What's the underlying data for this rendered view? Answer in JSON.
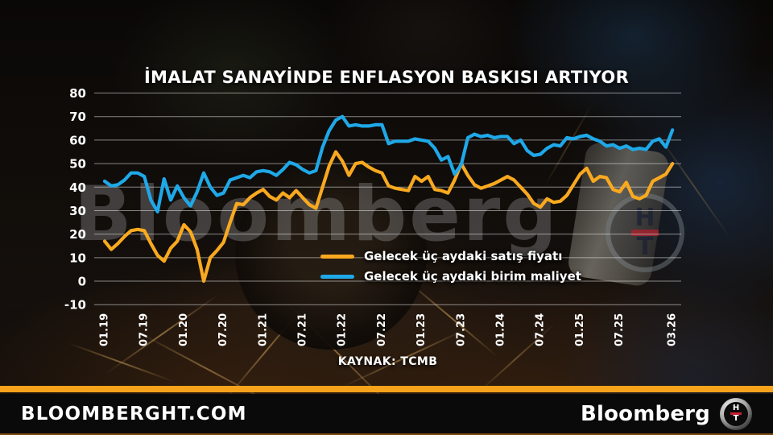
{
  "title": "İMALAT SANAYİNDE ENFLASYON BASKISI ARTIYOR",
  "source": "KAYNAK: TCMB",
  "watermark": {
    "text": "Bloomberg"
  },
  "ht_logo": {
    "top": "H",
    "bottom": "T"
  },
  "footer": {
    "site": "BLOOMBERGHT.COM",
    "brand": "Bloomberg"
  },
  "colors": {
    "selling_price_line": "#f9a91f",
    "unit_cost_line": "#1fa8e8",
    "grid": "rgba(235,235,235,0.55)",
    "tick_text": "#ffffff",
    "footer_stripe": "#f7a21b"
  },
  "chart_data": {
    "type": "line",
    "title": "İMALAT SANAYİNDE ENFLASYON BASKISI ARTIYOR",
    "x_start": "01.19",
    "x_end": "03.26",
    "x_points": 87,
    "x_tick_labels": [
      "01.19",
      "07.19",
      "01.20",
      "07.20",
      "01.21",
      "07.21",
      "01.22",
      "07.22",
      "01.23",
      "07.23",
      "01.24",
      "07.24",
      "01.25",
      "07.25",
      "03.26"
    ],
    "x_tick_month_index": [
      0,
      6,
      12,
      18,
      24,
      30,
      36,
      42,
      48,
      54,
      60,
      66,
      72,
      78,
      86
    ],
    "y_ticks": [
      80,
      70,
      60,
      50,
      40,
      30,
      20,
      10,
      0,
      -10
    ],
    "ylim": [
      -10,
      80
    ],
    "grid": true,
    "legend_position": "inside middle-right",
    "series": [
      {
        "name": "Gelecek üç aydaki satış fiyatı",
        "color": "#f9a91f",
        "values": [
          17,
          13.5,
          16,
          19,
          21.5,
          22,
          21.5,
          16,
          11,
          8.5,
          14,
          17,
          24,
          21,
          13.5,
          0,
          10,
          13,
          16.5,
          25,
          33,
          32.5,
          35.5,
          37.5,
          39,
          36,
          34.5,
          37.5,
          35.5,
          38.5,
          35.5,
          32.5,
          31,
          40,
          49,
          55,
          51,
          45,
          50,
          50.5,
          48.5,
          47,
          46,
          40.5,
          39.5,
          39,
          38.5,
          44.5,
          42.5,
          44.5,
          39,
          38.5,
          37.5,
          43,
          50,
          45,
          41,
          39.5,
          40.5,
          41.5,
          43,
          44.5,
          43,
          40,
          37,
          33,
          31.5,
          35,
          33.5,
          34,
          36.5,
          41,
          45.5,
          48,
          42.5,
          44.5,
          44,
          39,
          38,
          42,
          36,
          35,
          36.5,
          42.5,
          44,
          45.5,
          50
        ]
      },
      {
        "name": "Gelecek üç aydaki birim maliyet",
        "color": "#1fa8e8",
        "values": [
          42.5,
          40.5,
          41,
          43,
          46,
          46,
          44.5,
          34.5,
          29.5,
          43.5,
          34.5,
          40.5,
          35.5,
          32,
          38,
          46,
          40,
          36.5,
          37.5,
          43,
          44,
          45,
          44,
          46.5,
          47,
          46.5,
          45,
          47.5,
          50.5,
          49.5,
          47.5,
          46,
          47,
          57,
          64,
          68.5,
          70,
          66,
          66.5,
          66,
          66,
          66.5,
          66.5,
          58.5,
          59.5,
          59.5,
          59.5,
          60.5,
          60,
          59.5,
          56.5,
          51.5,
          53,
          45.5,
          49.5,
          61,
          62.5,
          61.5,
          62,
          61,
          61.5,
          61.5,
          58.5,
          60,
          55.5,
          53.5,
          54,
          56.5,
          58,
          57.5,
          61,
          60.5,
          61.5,
          62,
          60.5,
          59.5,
          57.5,
          58,
          56.5,
          57.5,
          56,
          56.5,
          56,
          59.5,
          60.5,
          57,
          64.3
        ]
      }
    ]
  }
}
